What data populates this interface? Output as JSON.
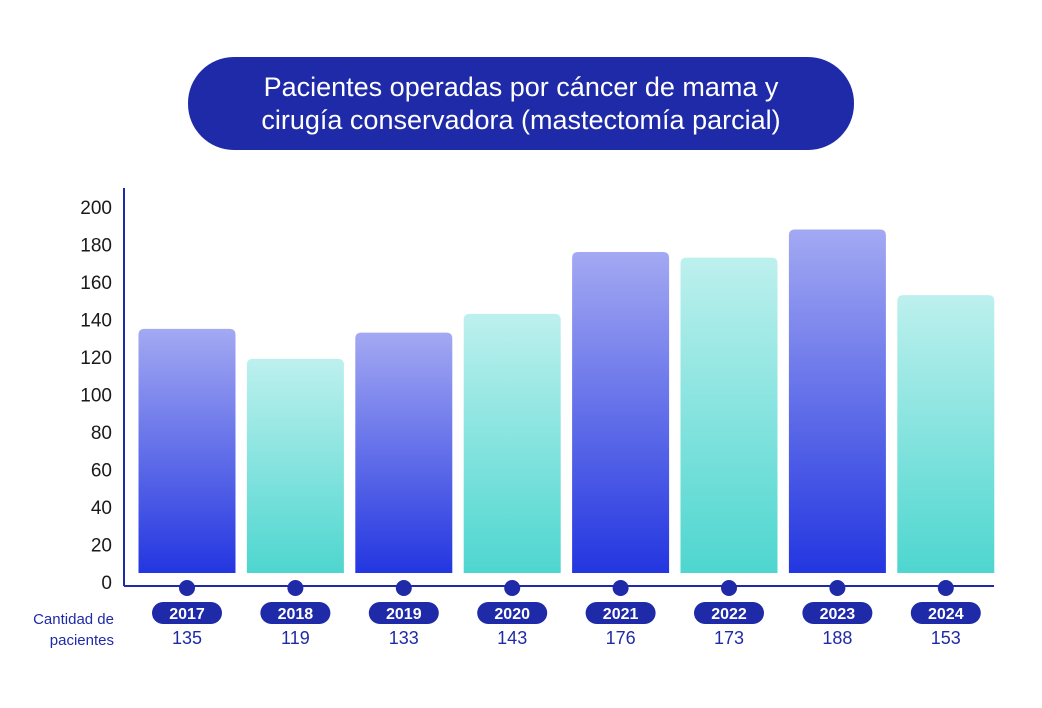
{
  "chart_data": {
    "type": "bar",
    "title_lines": [
      "Pacientes operadas por cáncer de mama y",
      "cirugía conservadora (mastectomía parcial)"
    ],
    "categories": [
      "2017",
      "2018",
      "2019",
      "2020",
      "2021",
      "2022",
      "2023",
      "2024"
    ],
    "values": [
      135,
      119,
      133,
      143,
      176,
      173,
      188,
      153
    ],
    "value_labels": [
      "135",
      "119",
      "133",
      "143",
      "176",
      "173",
      "188",
      "153"
    ],
    "yticks": [
      "0",
      "20",
      "40",
      "60",
      "80",
      "100",
      "120",
      "140",
      "160",
      "180",
      "200"
    ],
    "ylim": [
      0,
      200
    ],
    "row_label_lines": [
      "Cantidad de",
      "pacientes"
    ],
    "bar_styles": [
      "blue",
      "teal",
      "blue",
      "teal",
      "blue",
      "teal",
      "blue",
      "teal"
    ],
    "colors": {
      "title_bg": "#1f2aa8",
      "axis": "#1f2aa8",
      "blue_top": "#a3a9f2",
      "blue_bottom": "#2336e0",
      "teal_top": "#bdf0ee",
      "teal_bottom": "#4ed6cf"
    }
  }
}
